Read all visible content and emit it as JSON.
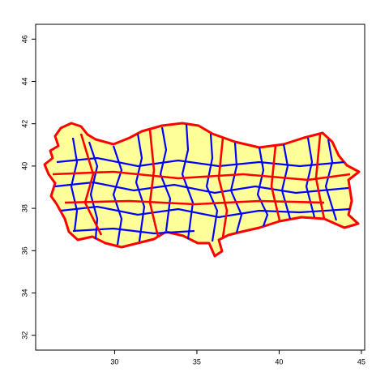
{
  "chart_data": {
    "type": "map",
    "xlim": [
      25.2,
      45.2
    ],
    "ylim": [
      31.3,
      46.7
    ],
    "xticks": [
      30,
      35,
      40,
      45
    ],
    "yticks": [
      32,
      34,
      36,
      38,
      40,
      42,
      44,
      46
    ],
    "fill": "#ffff99",
    "district_border_color": "#0000ff",
    "province_border_color": "#ff0000"
  }
}
